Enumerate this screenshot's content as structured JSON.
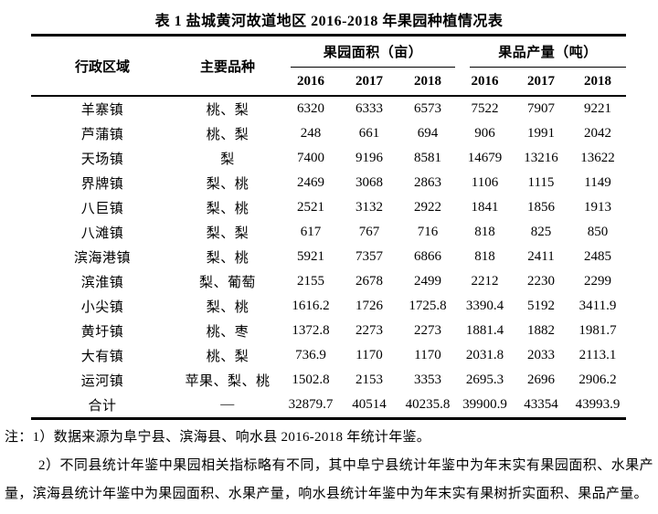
{
  "page": {
    "background_color": "#ffffff",
    "text_color": "#000000"
  },
  "title": "表 1 盐城黄河故道地区 2016-2018 年果园种植情况表",
  "table": {
    "col_headers": {
      "region": "行政区域",
      "varieties": "主要品种",
      "area_group": "果园面积（亩）",
      "yield_group": "果品产量（吨）",
      "years": [
        "2016",
        "2017",
        "2018"
      ]
    },
    "rows": [
      {
        "region": "羊寨镇",
        "varieties": "桃、梨",
        "area": [
          "6320",
          "6333",
          "6573"
        ],
        "yield": [
          "7522",
          "7907",
          "9221"
        ]
      },
      {
        "region": "芦蒲镇",
        "varieties": "桃、梨",
        "area": [
          "248",
          "661",
          "694"
        ],
        "yield": [
          "906",
          "1991",
          "2042"
        ]
      },
      {
        "region": "天场镇",
        "varieties": "梨",
        "area": [
          "7400",
          "9196",
          "8581"
        ],
        "yield": [
          "14679",
          "13216",
          "13622"
        ]
      },
      {
        "region": "界牌镇",
        "varieties": "梨、桃",
        "area": [
          "2469",
          "3068",
          "2863"
        ],
        "yield": [
          "1106",
          "1115",
          "1149"
        ]
      },
      {
        "region": "八巨镇",
        "varieties": "梨、桃",
        "area": [
          "2521",
          "3132",
          "2922"
        ],
        "yield": [
          "1841",
          "1856",
          "1913"
        ]
      },
      {
        "region": "八滩镇",
        "varieties": "梨、梨",
        "area": [
          "617",
          "767",
          "716"
        ],
        "yield": [
          "818",
          "825",
          "850"
        ]
      },
      {
        "region": "滨海港镇",
        "varieties": "梨、桃",
        "area": [
          "5921",
          "7357",
          "6866"
        ],
        "yield": [
          "818",
          "2411",
          "2485"
        ]
      },
      {
        "region": "滨淮镇",
        "varieties": "梨、葡萄",
        "area": [
          "2155",
          "2678",
          "2499"
        ],
        "yield": [
          "2212",
          "2230",
          "2299"
        ]
      },
      {
        "region": "小尖镇",
        "varieties": "梨、桃",
        "area": [
          "1616.2",
          "1726",
          "1725.8"
        ],
        "yield": [
          "3390.4",
          "5192",
          "3411.9"
        ]
      },
      {
        "region": "黄圩镇",
        "varieties": "桃、枣",
        "area": [
          "1372.8",
          "2273",
          "2273"
        ],
        "yield": [
          "1881.4",
          "1882",
          "1981.7"
        ]
      },
      {
        "region": "大有镇",
        "varieties": "桃、梨",
        "area": [
          "736.9",
          "1170",
          "1170"
        ],
        "yield": [
          "2031.8",
          "2033",
          "2113.1"
        ]
      },
      {
        "region": "运河镇",
        "varieties": "苹果、梨、桃",
        "area": [
          "1502.8",
          "2153",
          "3353"
        ],
        "yield": [
          "2695.3",
          "2696",
          "2906.2"
        ]
      },
      {
        "region": "合计",
        "varieties": "—",
        "area": [
          "32879.7",
          "40514",
          "40235.8"
        ],
        "yield": [
          "39900.9",
          "43354",
          "43993.9"
        ]
      }
    ]
  },
  "notes": {
    "note1": "注：1）数据来源为阜宁县、滨海县、响水县 2016-2018 年统计年鉴。",
    "note2": "2）不同县统计年鉴中果园相关指标略有不同，其中阜宁县统计年鉴中为年末实有果园面积、水果产量，滨海县统计年鉴中为果园面积、水果产量，响水县统计年鉴中为年末实有果树折实面积、果品产量。"
  }
}
